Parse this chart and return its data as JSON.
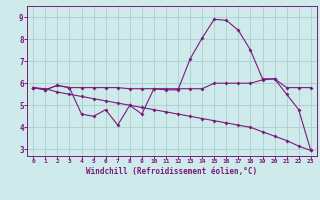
{
  "xlabel": "Windchill (Refroidissement éolien,°C)",
  "x": [
    0,
    1,
    2,
    3,
    4,
    5,
    6,
    7,
    8,
    9,
    10,
    11,
    12,
    13,
    14,
    15,
    16,
    17,
    18,
    19,
    20,
    21,
    22,
    23
  ],
  "line1": [
    5.8,
    5.7,
    5.9,
    5.8,
    4.6,
    4.5,
    4.8,
    4.1,
    5.0,
    4.6,
    5.75,
    5.7,
    5.7,
    7.1,
    8.05,
    8.9,
    8.85,
    8.4,
    7.5,
    6.2,
    6.2,
    5.5,
    4.8,
    2.95
  ],
  "line2": [
    5.8,
    5.7,
    5.9,
    5.8,
    5.8,
    5.8,
    5.8,
    5.8,
    5.75,
    5.75,
    5.75,
    5.75,
    5.75,
    5.75,
    5.75,
    6.0,
    6.0,
    6.0,
    6.0,
    6.15,
    6.2,
    5.8,
    5.8,
    5.8
  ],
  "line3": [
    5.8,
    5.75,
    5.6,
    5.5,
    5.4,
    5.3,
    5.2,
    5.1,
    5.0,
    4.9,
    4.8,
    4.7,
    4.6,
    4.5,
    4.4,
    4.3,
    4.2,
    4.1,
    4.0,
    3.8,
    3.6,
    3.4,
    3.15,
    2.95
  ],
  "bg_color": "#ceeaea",
  "line_color": "#7b1a7b",
  "grid_color": "#aacece",
  "ylim": [
    2.7,
    9.5
  ],
  "xlim": [
    -0.5,
    23.5
  ],
  "yticks": [
    3,
    4,
    5,
    6,
    7,
    8,
    9
  ],
  "xticks": [
    0,
    1,
    2,
    3,
    4,
    5,
    6,
    7,
    8,
    9,
    10,
    11,
    12,
    13,
    14,
    15,
    16,
    17,
    18,
    19,
    20,
    21,
    22,
    23
  ]
}
